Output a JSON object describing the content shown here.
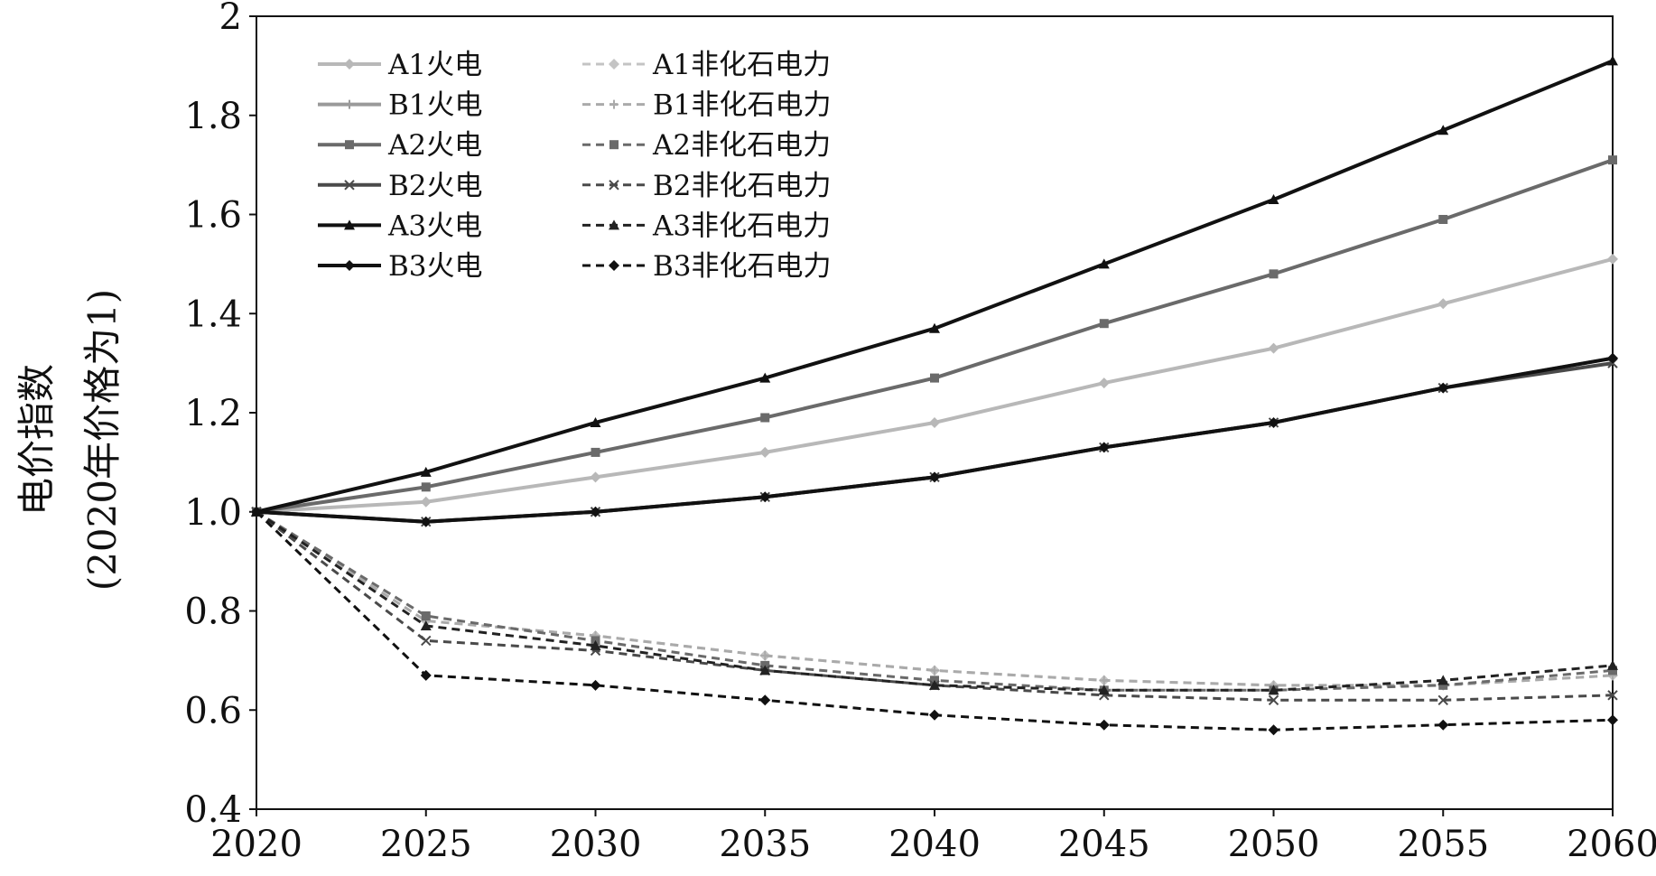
{
  "chart_data": {
    "type": "line",
    "title": "",
    "xlabel": "",
    "ylabel_line1": "电价指数",
    "ylabel_line2": "(2020年价格为1)",
    "xlim": [
      2020,
      2060
    ],
    "ylim": [
      0.4,
      2.0
    ],
    "x_ticks": [
      2020,
      2025,
      2030,
      2035,
      2040,
      2045,
      2050,
      2055,
      2060
    ],
    "x_tick_labels": [
      "2020",
      "2025",
      "2030",
      "2035",
      "2040",
      "2045",
      "2050",
      "2055",
      "2060"
    ],
    "y_ticks": [
      0.4,
      0.6,
      0.8,
      1.0,
      1.2,
      1.4,
      1.6,
      1.8,
      2.0
    ],
    "y_tick_labels": [
      "0.4",
      "0.6",
      "0.8",
      "1.0",
      "1.2",
      "1.4",
      "1.6",
      "1.8",
      "2"
    ],
    "grid": false,
    "legend_position": "top-left",
    "x": [
      2020,
      2025,
      2030,
      2035,
      2040,
      2045,
      2050,
      2055,
      2060
    ],
    "series": [
      {
        "name": "A1火电",
        "color": "#b8b8b8",
        "dash": "solid",
        "marker": "diamond",
        "values": [
          1.0,
          1.02,
          1.07,
          1.12,
          1.18,
          1.26,
          1.33,
          1.42,
          1.51
        ]
      },
      {
        "name": "B1火电",
        "color": "#9a9a9a",
        "dash": "solid",
        "marker": "plus",
        "values": [
          1.0,
          0.98,
          1.0,
          1.03,
          1.07,
          1.13,
          1.18,
          1.25,
          1.31
        ]
      },
      {
        "name": "A2火电",
        "color": "#6a6a6a",
        "dash": "solid",
        "marker": "square",
        "values": [
          1.0,
          1.05,
          1.12,
          1.19,
          1.27,
          1.38,
          1.48,
          1.59,
          1.71
        ]
      },
      {
        "name": "B2火电",
        "color": "#4a4a4a",
        "dash": "solid",
        "marker": "x",
        "values": [
          1.0,
          0.98,
          1.0,
          1.03,
          1.07,
          1.13,
          1.18,
          1.25,
          1.3
        ]
      },
      {
        "name": "A3火电",
        "color": "#111111",
        "dash": "solid",
        "marker": "triangle",
        "values": [
          1.0,
          1.08,
          1.18,
          1.27,
          1.37,
          1.5,
          1.63,
          1.77,
          1.91
        ]
      },
      {
        "name": "B3火电",
        "color": "#111111",
        "dash": "solid",
        "marker": "diamond",
        "values": [
          1.0,
          0.98,
          1.0,
          1.03,
          1.07,
          1.13,
          1.18,
          1.25,
          1.31
        ]
      },
      {
        "name": "A1非化石电力",
        "color": "#c4c4c4",
        "dash": "dashed",
        "marker": "diamond",
        "values": [
          1.0,
          0.78,
          0.75,
          0.71,
          0.68,
          0.66,
          0.65,
          0.65,
          0.67
        ]
      },
      {
        "name": "B1非化石电力",
        "color": "#aaaaaa",
        "dash": "dashed",
        "marker": "plus",
        "values": [
          1.0,
          0.78,
          0.75,
          0.71,
          0.68,
          0.66,
          0.65,
          0.65,
          0.67
        ]
      },
      {
        "name": "A2非化石电力",
        "color": "#6a6a6a",
        "dash": "dashed",
        "marker": "square",
        "values": [
          1.0,
          0.79,
          0.74,
          0.69,
          0.66,
          0.64,
          0.64,
          0.65,
          0.68
        ]
      },
      {
        "name": "B2非化石电力",
        "color": "#4a4a4a",
        "dash": "dashed",
        "marker": "x",
        "values": [
          1.0,
          0.74,
          0.72,
          0.68,
          0.65,
          0.63,
          0.62,
          0.62,
          0.63
        ]
      },
      {
        "name": "A3非化石电力",
        "color": "#222222",
        "dash": "dashed",
        "marker": "triangle",
        "values": [
          1.0,
          0.77,
          0.73,
          0.68,
          0.65,
          0.64,
          0.64,
          0.66,
          0.69
        ]
      },
      {
        "name": "B3非化石电力",
        "color": "#111111",
        "dash": "dashed",
        "marker": "diamond",
        "values": [
          1.0,
          0.67,
          0.65,
          0.62,
          0.59,
          0.57,
          0.56,
          0.57,
          0.58
        ]
      }
    ]
  }
}
